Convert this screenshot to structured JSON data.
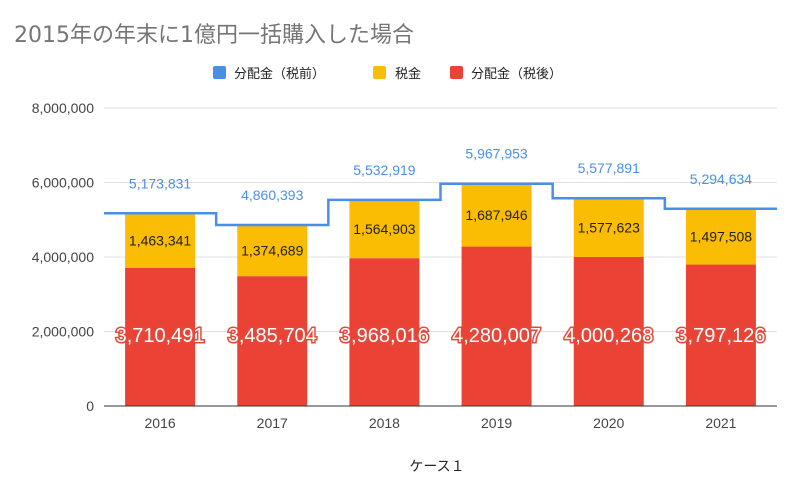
{
  "chart_data": {
    "type": "bar",
    "title": "2015年の年末に1億円一括購入した場合",
    "xlabel": "ケース１",
    "ylabel": "",
    "categories": [
      "2016",
      "2017",
      "2018",
      "2019",
      "2020",
      "2021"
    ],
    "ylim": [
      0,
      8000000
    ],
    "y_ticks": [
      {
        "value": 0,
        "label": "0"
      },
      {
        "value": 2000000,
        "label": "2,000,000"
      },
      {
        "value": 4000000,
        "label": "4,000,000"
      },
      {
        "value": 6000000,
        "label": "6,000,000"
      },
      {
        "value": 8000000,
        "label": "8,000,000"
      }
    ],
    "grid": true,
    "legend_position": "top",
    "series": [
      {
        "name": "分配金（税前）",
        "render": "stepped-line",
        "color": "#4a8fe7",
        "values": [
          5173831,
          4860393,
          5532919,
          5967953,
          5577891,
          5294634
        ],
        "labels": [
          "5,173,831",
          "4,860,393",
          "5,532,919",
          "5,967,953",
          "5,577,891",
          "5,294,634"
        ]
      },
      {
        "name": "税金",
        "render": "stacked-bar",
        "color": "#fbbc04",
        "values": [
          1463341,
          1374689,
          1564903,
          1687946,
          1577623,
          1497508
        ],
        "labels": [
          "1,463,341",
          "1,374,689",
          "1,564,903",
          "1,687,946",
          "1,577,623",
          "1,497,508"
        ]
      },
      {
        "name": "分配金（税後）",
        "render": "stacked-bar",
        "color": "#ea4335",
        "values": [
          3710491,
          3485704,
          3968016,
          4280007,
          4000268,
          3797126
        ],
        "labels": [
          "3,710,491",
          "3,485,704",
          "3,968,016",
          "4,280,007",
          "4,000,268",
          "3,797,126"
        ]
      }
    ],
    "legend": [
      {
        "name": "分配金（税前）",
        "color": "#4a8fe7"
      },
      {
        "name": "税金",
        "color": "#fbbc04"
      },
      {
        "name": "分配金（税後）",
        "color": "#ea4335"
      }
    ]
  }
}
